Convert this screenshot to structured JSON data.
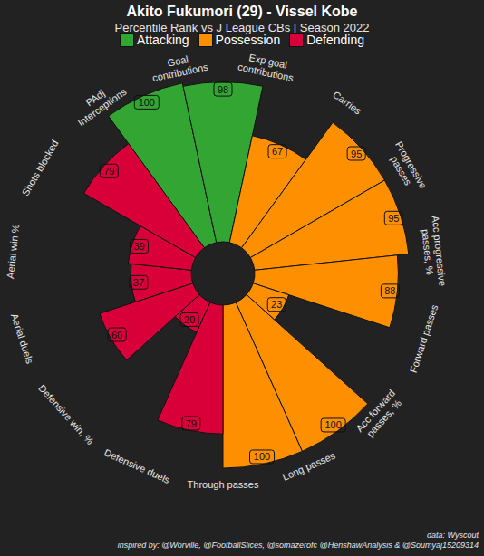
{
  "chart_data": {
    "type": "radial_bar",
    "title": "Akito Fukumori (29) - Vissel Kobe",
    "subtitle": "Percentile Rank vs J League CBs | Season 2022",
    "series": [
      {
        "name": "Attacking",
        "color": "#33a532",
        "categories": [
          "Goal contributions",
          "Exp goal contributions"
        ],
        "values": [
          100,
          98
        ]
      },
      {
        "name": "Possession",
        "color": "#fe9000",
        "categories": [
          "Carries",
          "Progressive passes",
          "Acc progressive passes, %",
          "Forward passes",
          "Acc forward passes, %",
          "Long passes",
          "Through passes"
        ],
        "values": [
          67,
          95,
          95,
          88,
          23,
          100,
          100
        ]
      },
      {
        "name": "Defending",
        "color": "#d9003a",
        "categories": [
          "Defensive duels",
          "Defensive win, %",
          "Aerial duels",
          "Aerial win %",
          "Shots blocked",
          "PAdj Interceptions"
        ],
        "values": [
          79,
          20,
          60,
          37,
          39,
          79
        ]
      }
    ],
    "ylim": [
      0,
      100
    ],
    "tick_labels": false,
    "data_labels": true,
    "legend": "top",
    "annotations": [
      "data: Wyscout",
      "inspired by: @Worville, @FootballSlices, @somazerofc @HenshawAnalysis & @Soumyaj15209314"
    ]
  }
}
